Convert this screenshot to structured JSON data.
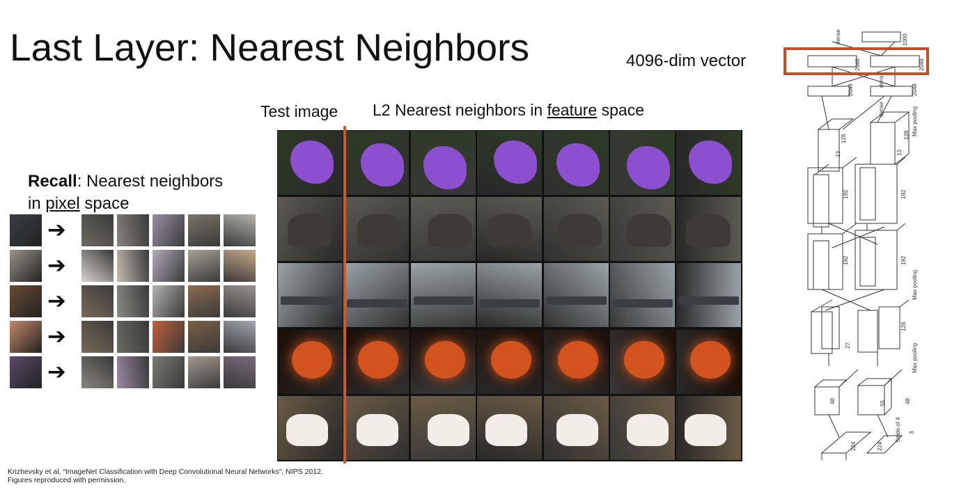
{
  "title": "Last Layer: Nearest Neighbors",
  "vector_label": "4096-dim vector",
  "test_image_label": "Test image",
  "nn_label": {
    "prefix": "L2 Nearest neighbors in ",
    "underlined": "feature",
    "suffix": " space"
  },
  "recall": {
    "bold": "Recall",
    "line1_rest": ": Nearest neighbors",
    "line2_prefix": "in ",
    "line2_underlined": "pixel",
    "line2_suffix": " space"
  },
  "citation": {
    "line1": "Krizhevsky et al, “ImageNet Classification with Deep Convolutional Neural Networks”, NIPS 2012.",
    "line2": "Figures reproduced with permission."
  },
  "grid_rows": [
    {
      "subject": "purple-flower",
      "bg": "#2d3a25",
      "fg": "#8b4fd0"
    },
    {
      "subject": "elephant",
      "bg": "#5c5a52",
      "fg": "#3e3a35"
    },
    {
      "subject": "aircraft-carrier",
      "bg": "#9aa3a8",
      "fg": "#3b3f45"
    },
    {
      "subject": "jack-o-lantern",
      "bg": "#1c0f08",
      "fg": "#d2531d"
    },
    {
      "subject": "dog",
      "bg": "#6a5a44",
      "fg": "#f2ede6"
    }
  ],
  "arch_labels": {
    "dense_top": "dense",
    "n1000": "1000",
    "n2048a": "2048",
    "n2048b": "2048",
    "n2048c": "2048",
    "n2048d": "2048",
    "dense_mid": "dense",
    "dense_low": "dense",
    "max_pooling_1": "Max pooling",
    "max_pooling_2": "Max pooling",
    "max_pooling_3": "Max pooling",
    "n128a": "128",
    "n128b": "128",
    "n13a": "13",
    "n13b": "13",
    "n192a": "192",
    "n192b": "192",
    "n192c": "192",
    "n192d": "192",
    "n128c": "128",
    "n27": "27",
    "n48a": "48",
    "n48b": "48",
    "n55": "55",
    "n224a": "224",
    "n224b": "224",
    "stride": "Stride of 4",
    "n3": "3"
  }
}
